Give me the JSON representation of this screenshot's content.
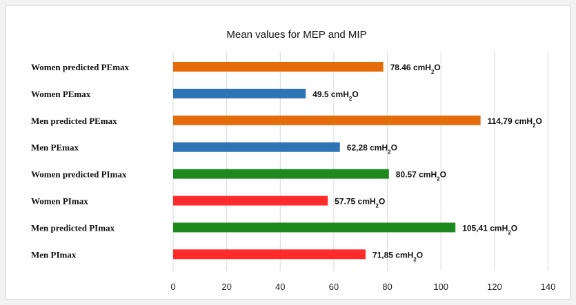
{
  "chart_data": {
    "type": "bar",
    "orientation": "horizontal",
    "title": "Mean values for MEP and MIP",
    "xlabel": "",
    "ylabel": "",
    "xlim": [
      0,
      140
    ],
    "ticks": [
      0,
      20,
      40,
      60,
      80,
      100,
      120,
      140
    ],
    "tick_labels": [
      "0",
      "20",
      "40",
      "60",
      "80",
      "100",
      "120",
      "140"
    ],
    "grid": "vertical",
    "categories": [
      "Women predicted PEmax",
      "Women PEmax",
      "Men predicted PEmax",
      "Men PEmax",
      "Women predicted PImax",
      "Women PImax",
      "Men predicted PImax",
      "Men PImax"
    ],
    "values": [
      78.46,
      49.5,
      114.79,
      62.28,
      80.57,
      57.75,
      105.41,
      71.85
    ],
    "bar_colors": [
      "#e46c0a",
      "#2e75b6",
      "#e46c0a",
      "#2e75b6",
      "#1e8a1e",
      "#ff2a2a",
      "#1e8a1e",
      "#ff2a2a"
    ],
    "data_labels": [
      {
        "num": "78.46",
        "unit": "cmH",
        "sub": "2",
        "tail": "O"
      },
      {
        "num": "49.5",
        "unit": "cmH",
        "sub": "2",
        "tail": "O"
      },
      {
        "num": "114,79",
        "unit": "cmH",
        "sub": "2",
        "tail": "O"
      },
      {
        "num": "62,28",
        "unit": "cmH",
        "sub": "2",
        "tail": "O"
      },
      {
        "num": "80.57",
        "unit": "cmH",
        "sub": "2",
        "tail": "O"
      },
      {
        "num": "57.75",
        "unit": "cmH",
        "sub": "2",
        "tail": "O"
      },
      {
        "num": "105,41",
        "unit": "cmH",
        "sub": "2",
        "tail": "O"
      },
      {
        "num": "71,85",
        "unit": "cmH",
        "sub": "2",
        "tail": "O"
      }
    ]
  }
}
